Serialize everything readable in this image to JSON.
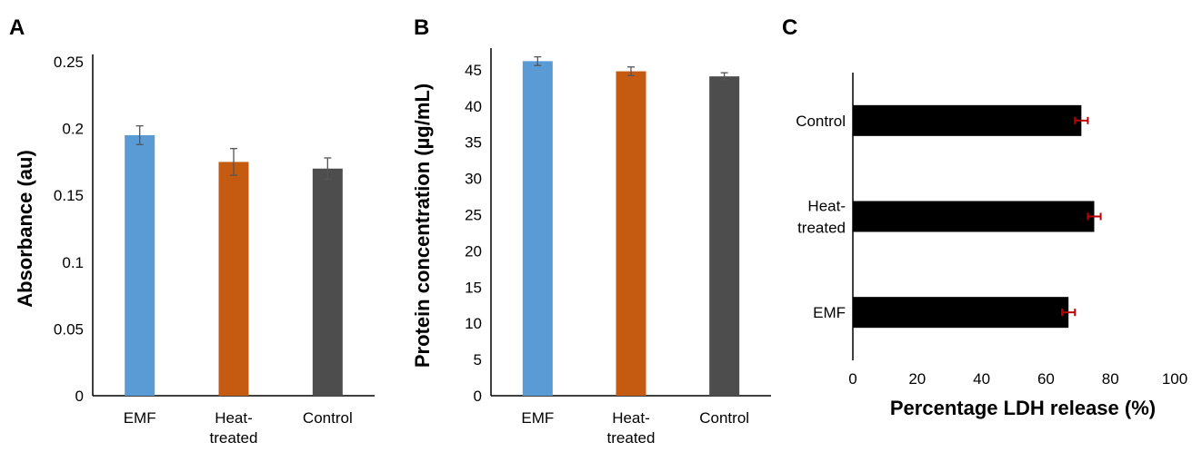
{
  "panels": [
    "A",
    "B",
    "C"
  ],
  "chart_data": [
    {
      "type": "bar",
      "orientation": "vertical",
      "panel": "A",
      "ylabel": "Absorbance (au)",
      "xlabel": "",
      "categories": [
        "EMF",
        "Heat-treated",
        "Control"
      ],
      "category_lines": [
        [
          "EMF"
        ],
        [
          "Heat-",
          "treated"
        ],
        [
          "Control"
        ]
      ],
      "values": [
        0.195,
        0.175,
        0.17
      ],
      "errors": [
        0.007,
        0.01,
        0.008
      ],
      "colors": [
        "#5b9bd5",
        "#c55a11",
        "#4d4d4d"
      ],
      "error_color": "#555555",
      "ylim": [
        0,
        0.25
      ],
      "yticks": [
        0,
        0.05,
        0.1,
        0.15,
        0.2,
        0.25
      ],
      "ytick_labels": [
        "0",
        "0.05",
        "0.1",
        "0.15",
        "0.2",
        "0.25"
      ],
      "grid": false,
      "legend": "none"
    },
    {
      "type": "bar",
      "orientation": "vertical",
      "panel": "B",
      "ylabel": "Protein concentration (µg/mL)",
      "xlabel": "",
      "categories": [
        "EMF",
        "Heat-treated",
        "Control"
      ],
      "category_lines": [
        [
          "EMF"
        ],
        [
          "Heat-",
          "treated"
        ],
        [
          "Control"
        ]
      ],
      "values": [
        46.2,
        44.8,
        44.1
      ],
      "errors": [
        0.6,
        0.6,
        0.5
      ],
      "colors": [
        "#5b9bd5",
        "#c55a11",
        "#4d4d4d"
      ],
      "error_color": "#555555",
      "ylim": [
        0,
        47
      ],
      "yticks": [
        0,
        5,
        10,
        15,
        20,
        25,
        30,
        35,
        40,
        45
      ],
      "ytick_labels": [
        "0",
        "5",
        "10",
        "15",
        "20",
        "25",
        "30",
        "35",
        "40",
        "45"
      ],
      "grid": false,
      "legend": "none"
    },
    {
      "type": "bar",
      "orientation": "horizontal",
      "panel": "C",
      "xlabel": "Percentage LDH release (%)",
      "ylabel": "",
      "categories": [
        "Control",
        "Heat-treated",
        "EMF"
      ],
      "category_lines": [
        [
          "Control"
        ],
        [
          "Heat-",
          "treated"
        ],
        [
          "EMF"
        ]
      ],
      "values": [
        71,
        75,
        67
      ],
      "errors": [
        2,
        2,
        2
      ],
      "colors": [
        "#000000",
        "#000000",
        "#000000"
      ],
      "error_color": "#c00000",
      "xlim": [
        0,
        100
      ],
      "xticks": [
        0,
        20,
        40,
        60,
        80,
        100
      ],
      "xtick_labels": [
        "0",
        "20",
        "40",
        "60",
        "80",
        "100"
      ],
      "grid": false,
      "legend": "none"
    }
  ]
}
